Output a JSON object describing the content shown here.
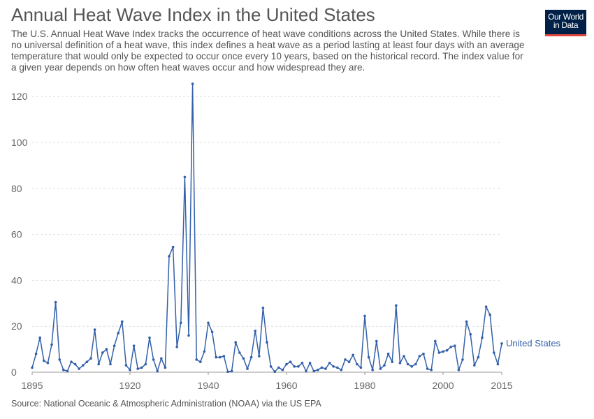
{
  "header": {
    "title": "Annual Heat Wave Index in the United States",
    "subtitle": "The U.S. Annual Heat Wave Index tracks the occurrence of heat wave conditions across the United States. While there is no universal definition of a heat wave, this index defines a heat wave as a period lasting at least four days with an average temperature that would only be expected to occur once every 10 years, based on the historical record. The index value for a given year depends on how often heat waves occur and how widespread they are."
  },
  "logo": {
    "line1": "Our World",
    "line2": "in Data",
    "bg_color": "#002147",
    "accent_color": "#e0463c"
  },
  "footer": {
    "source": "Source: National Oceanic & Atmospheric Administration (NOAA) via the US EPA"
  },
  "chart_data": {
    "type": "line",
    "xlim": [
      1895,
      2015
    ],
    "ylim": [
      0,
      126
    ],
    "x_ticks": [
      "1895",
      "1920",
      "1940",
      "1960",
      "1980",
      "2000",
      "2015"
    ],
    "y_ticks": [
      "0",
      "20",
      "40",
      "60",
      "80",
      "100",
      "120"
    ],
    "grid": true,
    "series": [
      {
        "name": "United States",
        "color": "#3360a9",
        "x": [
          1895,
          1896,
          1897,
          1898,
          1899,
          1900,
          1901,
          1902,
          1903,
          1904,
          1905,
          1906,
          1907,
          1908,
          1909,
          1910,
          1911,
          1912,
          1913,
          1914,
          1915,
          1916,
          1917,
          1918,
          1919,
          1920,
          1921,
          1922,
          1923,
          1924,
          1925,
          1926,
          1927,
          1928,
          1929,
          1930,
          1931,
          1932,
          1933,
          1934,
          1935,
          1936,
          1937,
          1938,
          1939,
          1940,
          1941,
          1942,
          1943,
          1944,
          1945,
          1946,
          1947,
          1948,
          1949,
          1950,
          1951,
          1952,
          1953,
          1954,
          1955,
          1956,
          1957,
          1958,
          1959,
          1960,
          1961,
          1962,
          1963,
          1964,
          1965,
          1966,
          1967,
          1968,
          1969,
          1970,
          1971,
          1972,
          1973,
          1974,
          1975,
          1976,
          1977,
          1978,
          1979,
          1980,
          1981,
          1982,
          1983,
          1984,
          1985,
          1986,
          1987,
          1988,
          1989,
          1990,
          1991,
          1992,
          1993,
          1994,
          1995,
          1996,
          1997,
          1998,
          1999,
          2000,
          2001,
          2002,
          2003,
          2004,
          2005,
          2006,
          2007,
          2008,
          2009,
          2010,
          2011,
          2012,
          2013,
          2014,
          2015
        ],
        "values": [
          2,
          8,
          15,
          5,
          4,
          12,
          30.5,
          5.5,
          1,
          0.5,
          4.5,
          3.5,
          1.5,
          3,
          4.5,
          6,
          18.5,
          3.5,
          8.5,
          10,
          3.5,
          11.5,
          17,
          22,
          3,
          1,
          11.5,
          1.5,
          2,
          3.5,
          15,
          5.5,
          0.5,
          6,
          2,
          50.5,
          54.5,
          11,
          21.5,
          85,
          16,
          125.5,
          5.5,
          4.5,
          9,
          21.5,
          17.5,
          6.5,
          6.5,
          7,
          0.2,
          0.5,
          13,
          8.5,
          6,
          1.5,
          6.5,
          18,
          7,
          28,
          13,
          2.5,
          0.2,
          2,
          1,
          3.5,
          4.5,
          2.5,
          2.5,
          4,
          0.5,
          4,
          0.5,
          1,
          2,
          1.5,
          4,
          2.5,
          2,
          1,
          5.5,
          4.5,
          7.5,
          3.5,
          2,
          24.5,
          6.5,
          1,
          13.5,
          1.5,
          3,
          8,
          4.5,
          29,
          4,
          7,
          3.5,
          2.5,
          3.5,
          7,
          8,
          1.5,
          1,
          13.5,
          8.5,
          9,
          9.5,
          11,
          11.5,
          1,
          5.5,
          22,
          16.5,
          3,
          6.5,
          15,
          28.5,
          25,
          8.5,
          3.5,
          12.5
        ]
      }
    ]
  }
}
